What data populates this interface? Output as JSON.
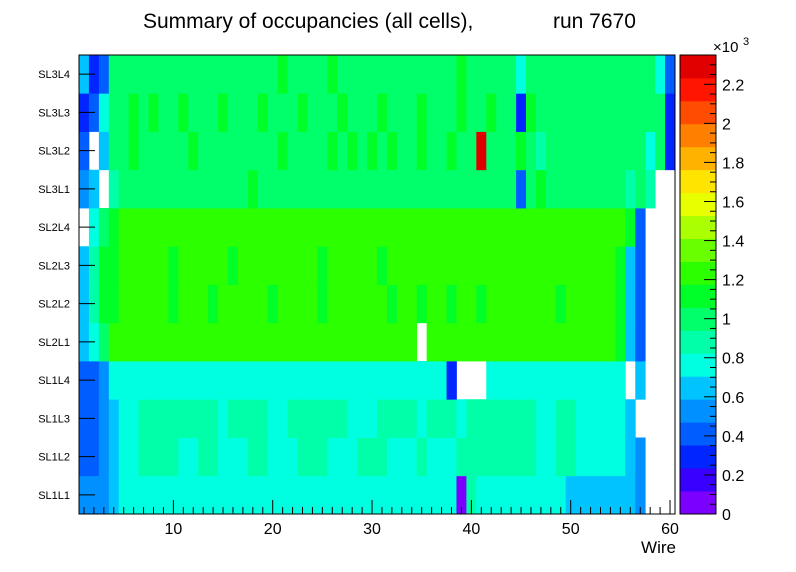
{
  "chart_data": {
    "type": "heatmap",
    "title_main": "Summary of occupancies (all cells),",
    "title_run": "run 7670",
    "xlabel": "Wire",
    "x_range": [
      0.5,
      60.5
    ],
    "x_ticks": [
      "10",
      "20",
      "30",
      "40",
      "50",
      "60"
    ],
    "x_tick_values": [
      10,
      20,
      30,
      40,
      50,
      60
    ],
    "layers": [
      "SL1L1",
      "SL1L2",
      "SL1L3",
      "SL1L4",
      "SL2L1",
      "SL2L2",
      "SL2L3",
      "SL2L4",
      "SL3L1",
      "SL3L2",
      "SL3L3",
      "SL3L4"
    ],
    "z_range": [
      0,
      2350
    ],
    "z_multiplier": "×10",
    "z_exponent": "3",
    "z_ticks": [
      "0",
      "0.2",
      "0.4",
      "0.6",
      "0.8",
      "1",
      "1.2",
      "1.4",
      "1.6",
      "1.8",
      "2",
      "2.2"
    ],
    "z_tick_values": [
      0,
      200,
      400,
      600,
      800,
      1000,
      1200,
      1400,
      1600,
      1800,
      2000,
      2200
    ],
    "palette": [
      "#7b00ff",
      "#3a00ff",
      "#0025ff",
      "#005dff",
      "#0090ff",
      "#00c3ff",
      "#00ffe0",
      "#00ffa8",
      "#00ff6a",
      "#00ff28",
      "#2bff00",
      "#6aff00",
      "#aaff00",
      "#e8ff00",
      "#ffe400",
      "#ffb200",
      "#ff8000",
      "#ff4c00",
      "#ff1500",
      "#e00000"
    ],
    "cells": [
      [
        500,
        520,
        580,
        700,
        720,
        760,
        770,
        780,
        780,
        760,
        770,
        780,
        790,
        780,
        770,
        760,
        770,
        780,
        790,
        780,
        770,
        760,
        770,
        780,
        790,
        780,
        780,
        770,
        760,
        770,
        780,
        790,
        780,
        760,
        770,
        780,
        770,
        760,
        0,
        840,
        800,
        790,
        780,
        790,
        780,
        770,
        760,
        740,
        720,
        700,
        700,
        680,
        660,
        640,
        620,
        600,
        480,
        null,
        null,
        null
      ],
      [
        420,
        440,
        480,
        700,
        800,
        820,
        830,
        840,
        850,
        830,
        800,
        820,
        840,
        830,
        820,
        800,
        820,
        840,
        830,
        820,
        810,
        820,
        830,
        840,
        830,
        820,
        810,
        820,
        830,
        840,
        830,
        820,
        810,
        820,
        830,
        820,
        810,
        820,
        830,
        860,
        870,
        860,
        850,
        860,
        850,
        830,
        800,
        820,
        840,
        830,
        820,
        800,
        820,
        810,
        800,
        640,
        480,
        null,
        null,
        null
      ],
      [
        420,
        460,
        560,
        700,
        800,
        820,
        830,
        840,
        850,
        880,
        900,
        880,
        850,
        830,
        820,
        860,
        880,
        850,
        830,
        820,
        820,
        830,
        840,
        860,
        870,
        850,
        830,
        820,
        810,
        820,
        830,
        860,
        880,
        840,
        820,
        850,
        870,
        830,
        820,
        860,
        870,
        860,
        850,
        840,
        850,
        830,
        800,
        820,
        840,
        830,
        820,
        800,
        820,
        810,
        780,
        620,
        null,
        null,
        null,
        null
      ],
      [
        420,
        380,
        540,
        760,
        760,
        760,
        760,
        760,
        760,
        780,
        740,
        760,
        780,
        760,
        760,
        760,
        760,
        760,
        760,
        780,
        760,
        760,
        760,
        760,
        760,
        760,
        780,
        760,
        760,
        760,
        760,
        760,
        760,
        760,
        760,
        760,
        760,
        300,
        null,
        null,
        null,
        780,
        780,
        800,
        800,
        780,
        760,
        760,
        760,
        760,
        760,
        760,
        760,
        760,
        740,
        null,
        600,
        null,
        null,
        null
      ],
      [
        620,
        740,
        1050,
        1200,
        1200,
        1200,
        1200,
        1200,
        1200,
        1200,
        1200,
        1200,
        1200,
        1200,
        1200,
        1200,
        1200,
        1200,
        1200,
        1200,
        1200,
        1200,
        1200,
        1200,
        1200,
        1200,
        1200,
        1200,
        1200,
        1200,
        1200,
        1200,
        1200,
        1200,
        null,
        1200,
        1200,
        1200,
        1200,
        1200,
        1200,
        1200,
        1200,
        1200,
        1200,
        1200,
        1200,
        1200,
        1200,
        1200,
        1200,
        1200,
        1200,
        1200,
        1150,
        700,
        360,
        null,
        null,
        null
      ],
      [
        640,
        860,
        1100,
        1150,
        1200,
        1200,
        1200,
        1200,
        1200,
        1150,
        1200,
        1200,
        1200,
        1150,
        1200,
        1200,
        1200,
        1200,
        1200,
        1150,
        1200,
        1200,
        1200,
        1200,
        1150,
        1200,
        1200,
        1200,
        1200,
        1200,
        1200,
        1150,
        1200,
        1200,
        1150,
        1200,
        1200,
        1150,
        1200,
        1200,
        1150,
        1200,
        1200,
        1200,
        1200,
        1200,
        1200,
        1200,
        1150,
        1200,
        1200,
        1200,
        1200,
        1200,
        1150,
        700,
        360,
        null,
        null,
        null
      ],
      [
        700,
        840,
        1120,
        1150,
        1200,
        1200,
        1200,
        1200,
        1200,
        1150,
        1200,
        1200,
        1200,
        1200,
        1200,
        1150,
        1200,
        1200,
        1200,
        1200,
        1200,
        1200,
        1200,
        1200,
        1150,
        1200,
        1200,
        1200,
        1200,
        1200,
        1150,
        1200,
        1200,
        1200,
        1200,
        1200,
        1200,
        1200,
        1200,
        1200,
        1200,
        1200,
        1200,
        1200,
        1200,
        1200,
        1200,
        1200,
        1200,
        1200,
        1200,
        1200,
        1200,
        1200,
        1150,
        650,
        360,
        null,
        null,
        null
      ],
      [
        null,
        820,
        1050,
        1150,
        1200,
        1200,
        1200,
        1200,
        1200,
        1200,
        1200,
        1200,
        1200,
        1200,
        1200,
        1200,
        1200,
        1200,
        1200,
        1200,
        1200,
        1200,
        1200,
        1200,
        1200,
        1200,
        1200,
        1200,
        1200,
        1200,
        1200,
        1200,
        1200,
        1200,
        1200,
        1200,
        1200,
        1200,
        1200,
        1200,
        1200,
        1200,
        1200,
        1200,
        1200,
        1200,
        1200,
        1200,
        1200,
        1200,
        1200,
        1200,
        1200,
        1200,
        1200,
        1100,
        360,
        null,
        null,
        null
      ],
      [
        500,
        620,
        null,
        920,
        1000,
        1020,
        1000,
        1050,
        1000,
        1020,
        1000,
        1050,
        1000,
        1020,
        1000,
        1050,
        1000,
        1100,
        1000,
        1020,
        1000,
        1050,
        1000,
        1020,
        1050,
        1000,
        1020,
        1000,
        1050,
        1000,
        1000,
        1020,
        1000,
        1050,
        1000,
        1020,
        1000,
        1050,
        1000,
        1020,
        1050,
        1000,
        1020,
        1000,
        360,
        1050,
        1100,
        1000,
        1020,
        1000,
        1050,
        1000,
        1020,
        1000,
        1020,
        900,
        1000,
        840,
        null,
        null
      ],
      [
        360,
        null,
        620,
        1000,
        1020,
        1100,
        1000,
        1050,
        1000,
        1020,
        1000,
        1100,
        1000,
        1050,
        1000,
        1020,
        1000,
        1050,
        1000,
        1020,
        1100,
        1050,
        1000,
        1020,
        1050,
        1100,
        1020,
        1100,
        1050,
        1100,
        1020,
        1100,
        1050,
        1000,
        1100,
        1020,
        1050,
        1100,
        1000,
        1050,
        2250,
        1050,
        1000,
        1020,
        1100,
        1050,
        860,
        1000,
        1020,
        1000,
        1050,
        1000,
        1020,
        1000,
        1020,
        1000,
        1000,
        800,
        1050,
        280
      ],
      [
        300,
        460,
        760,
        1000,
        1050,
        1100,
        1050,
        1100,
        1000,
        1050,
        1100,
        1050,
        1000,
        1050,
        1100,
        1050,
        1000,
        1050,
        1100,
        1050,
        1000,
        1050,
        1100,
        1050,
        1000,
        1050,
        1100,
        1050,
        1000,
        1050,
        1100,
        1050,
        1000,
        1050,
        1100,
        1050,
        1000,
        1050,
        1100,
        1050,
        1050,
        1100,
        1050,
        1000,
        280,
        1100,
        1050,
        1000,
        1050,
        1000,
        1050,
        1000,
        1050,
        1000,
        1050,
        1000,
        1000,
        1050,
        1050,
        300
      ],
      [
        600,
        300,
        360,
        1000,
        960,
        980,
        1000,
        1020,
        1000,
        980,
        1050,
        1000,
        1020,
        1000,
        1050,
        1020,
        1000,
        1050,
        1050,
        1000,
        1100,
        1020,
        1000,
        1050,
        1020,
        1100,
        1000,
        1020,
        1050,
        1000,
        1020,
        1050,
        1000,
        1020,
        1050,
        1000,
        1020,
        1050,
        1100,
        1050,
        1050,
        1020,
        1000,
        1050,
        780,
        1000,
        1020,
        1000,
        1050,
        1000,
        1020,
        1000,
        1050,
        1000,
        1020,
        1000,
        1000,
        1000,
        760,
        360
      ]
    ]
  }
}
